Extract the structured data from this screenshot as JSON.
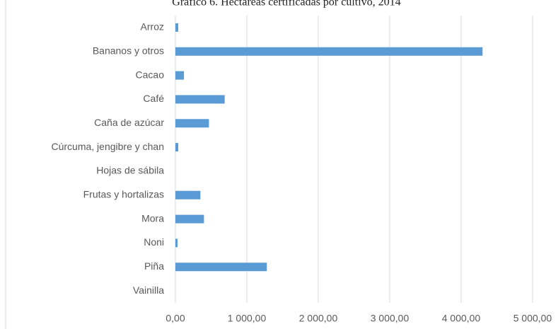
{
  "chart_data": {
    "type": "barh",
    "title": "Gráfico 6. Hectáreas certificadas por cultivo, 2014",
    "categories": [
      "Arroz",
      "Bananos y otros",
      "Cacao",
      "Café",
      "Caña de azúcar",
      "Cúrcuma, jengibre y chan",
      "Hojas de sábila",
      "Frutas y hortalizas",
      "Mora",
      "Noni",
      "Piña",
      "Vainilla"
    ],
    "values": [
      40,
      4300,
      120,
      690,
      470,
      40,
      0,
      350,
      400,
      30,
      1280,
      0
    ],
    "color": "#5b9bd5",
    "xlim": [
      0,
      5000
    ],
    "xticks": [
      {
        "value": 0,
        "label": "0,00"
      },
      {
        "value": 1000,
        "label": "1 000,00"
      },
      {
        "value": 2000,
        "label": "2 000,00"
      },
      {
        "value": 3000,
        "label": "3 000,00"
      },
      {
        "value": 4000,
        "label": "4 000,00"
      },
      {
        "value": 5000,
        "label": "5 000,00"
      }
    ],
    "grid": true
  }
}
